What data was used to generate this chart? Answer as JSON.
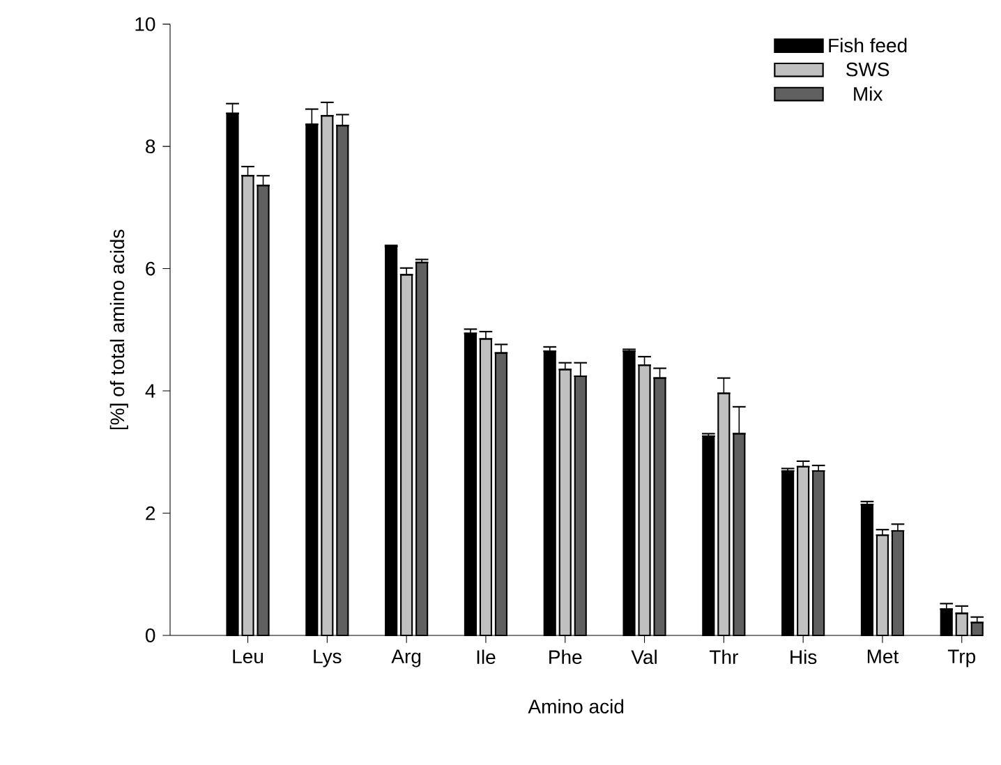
{
  "chart_data": {
    "type": "bar",
    "xlabel": "Amino acid",
    "ylabel": "[%] of total amino acids",
    "categories": [
      "Leu",
      "Lys",
      "Arg",
      "Ile",
      "Phe",
      "Val",
      "Thr",
      "His",
      "Met",
      "Trp"
    ],
    "series": [
      {
        "name": "Fish feed",
        "color": "#000000",
        "values": [
          8.54,
          8.36,
          6.36,
          4.94,
          4.65,
          4.65,
          3.26,
          2.69,
          2.14,
          0.43
        ],
        "errors": [
          [
            8.54,
            8.7
          ],
          [
            8.36,
            8.61
          ],
          [
            6.36,
            6.38
          ],
          [
            4.94,
            5.01
          ],
          [
            4.65,
            4.72
          ],
          [
            4.65,
            4.68
          ],
          [
            3.26,
            3.3
          ],
          [
            2.69,
            2.73
          ],
          [
            2.14,
            2.19
          ],
          [
            0.43,
            0.52
          ]
        ]
      },
      {
        "name": "SWS",
        "color": "#c0c0c0",
        "values": [
          7.52,
          8.5,
          5.9,
          4.85,
          4.35,
          4.42,
          3.96,
          2.76,
          1.64,
          0.36
        ],
        "errors": [
          [
            7.52,
            7.67
          ],
          [
            8.5,
            8.72
          ],
          [
            5.9,
            6.01
          ],
          [
            4.85,
            4.97
          ],
          [
            4.35,
            4.46
          ],
          [
            4.42,
            4.56
          ],
          [
            3.96,
            4.21
          ],
          [
            2.76,
            2.85
          ],
          [
            1.64,
            1.73
          ],
          [
            0.36,
            0.48
          ]
        ]
      },
      {
        "name": "Mix",
        "color": "#606060",
        "values": [
          7.36,
          8.34,
          6.1,
          4.62,
          4.24,
          4.21,
          3.3,
          2.69,
          1.71,
          0.21
        ],
        "errors": [
          [
            7.36,
            7.52
          ],
          [
            8.34,
            8.52
          ],
          [
            6.1,
            6.15
          ],
          [
            4.62,
            4.76
          ],
          [
            4.24,
            4.46
          ],
          [
            4.21,
            4.37
          ],
          [
            3.3,
            3.74
          ],
          [
            2.69,
            2.78
          ],
          [
            1.71,
            1.82
          ],
          [
            0.21,
            0.3
          ]
        ]
      }
    ],
    "ylim": [
      0,
      10
    ],
    "yticks": [
      0,
      2,
      4,
      6,
      8,
      10
    ],
    "grid": false,
    "legend": "top right"
  }
}
